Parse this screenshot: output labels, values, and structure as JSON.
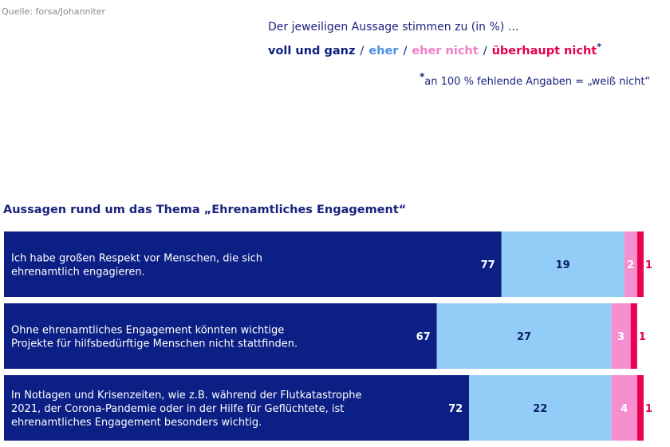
{
  "source": "Quelle: forsa/Johanniter",
  "intro": "Der jeweiligen Aussage stimmen zu (in %) …",
  "legend": {
    "items": [
      {
        "label": "voll und ganz",
        "color": "#0b1f80"
      },
      {
        "label": "eher",
        "color": "#4a90e2"
      },
      {
        "label": "eher nicht",
        "color": "#f07ec8"
      },
      {
        "label": "überhaupt nicht",
        "color": "#e6004c"
      }
    ],
    "separator": "/",
    "star": "*"
  },
  "footnote": {
    "star": "*",
    "text": "an 100 % fehlende Angaben = „weiß nicht“"
  },
  "chart_data": {
    "type": "bar",
    "stacked": true,
    "orientation": "horizontal",
    "title": "Aussagen rund um das Thema „Ehrenamtliches Engagement“",
    "categories": [
      [
        "Ich habe großen Respekt vor Menschen, die sich",
        "ehrenamtlich engagieren."
      ],
      [
        "Ohne ehrenamtliches Engagement könnten wichtige",
        "Projekte für hilfsbedürftige Menschen nicht stattfinden."
      ],
      [
        "In Notlagen und Krisenzeiten, wie z.B. während der Flutkatastrophe",
        "2021, der Corona-Pandemie oder in der Hilfe für Geflüchtete, ist",
        "ehrenamtliches Engagement besonders wichtig."
      ]
    ],
    "series": [
      {
        "name": "voll und ganz",
        "color": "#0c1f84",
        "values": [
          77,
          67,
          72
        ]
      },
      {
        "name": "eher",
        "color": "#92cdf7",
        "values": [
          19,
          27,
          22
        ]
      },
      {
        "name": "eher nicht",
        "color": "#f58fd0",
        "values": [
          2,
          3,
          4
        ]
      },
      {
        "name": "überhaupt nicht",
        "color": "#e8004f",
        "values": [
          1,
          1,
          1
        ]
      }
    ],
    "xlim": [
      0,
      100
    ]
  }
}
